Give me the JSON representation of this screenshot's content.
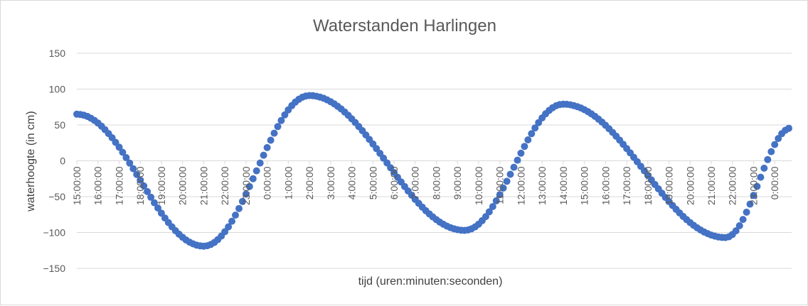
{
  "chart_data": {
    "type": "scatter",
    "title": "Waterstanden Harlingen",
    "xlabel": "tijd (uren:minuten:seconden)",
    "ylabel": "waterhoogte (in cm)",
    "ylim": [
      -150,
      150
    ],
    "yticks": [
      150,
      100,
      50,
      0,
      -50,
      -100,
      -150
    ],
    "grid": true,
    "legend": "none",
    "marker_color": "#4472c4",
    "x_tick_labels": [
      "15:00:00",
      "16:00:00",
      "17:00:00",
      "18:00:00",
      "19:00:00",
      "20:00:00",
      "21:00:00",
      "22:00:00",
      "23:00:00",
      "0:00:00",
      "1:00:00",
      "2:00:00",
      "3:00:00",
      "4:00:00",
      "5:00:00",
      "6:00:00",
      "7:00:00",
      "8:00:00",
      "9:00:00",
      "10:00:00",
      "11:00:00",
      "12:00:00",
      "13:00:00",
      "14:00:00",
      "15:00:00",
      "16:00:00",
      "17:00:00",
      "18:00:00",
      "19:00:00",
      "20:00:00",
      "21:00:00",
      "22:00:00",
      "23:00:00",
      "0:00:00"
    ],
    "x_start_hour": 15,
    "x_end_hour": 48.8,
    "extrema": [
      {
        "time": "15:00:00",
        "value": 65
      },
      {
        "time": "21:00:00",
        "value": -119
      },
      {
        "time": "2:00:00",
        "value": 91
      },
      {
        "time": "9:20:00",
        "value": -97
      },
      {
        "time": "14:00:00",
        "value": 79
      },
      {
        "time": "21:40:00",
        "value": -107
      },
      {
        "time": "0:48:00",
        "value": 46
      }
    ]
  }
}
